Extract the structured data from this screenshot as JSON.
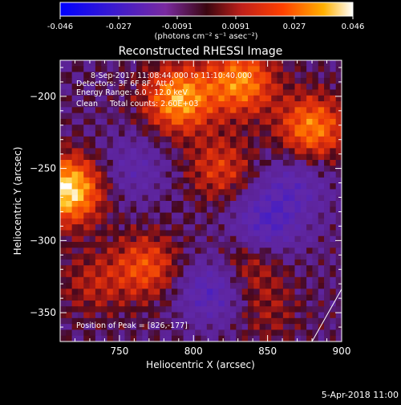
{
  "colorbar": {
    "ticks": [
      "-0.046",
      "-0.027",
      "-0.0091",
      "0.0091",
      "0.027",
      "0.046"
    ],
    "unit_label": "(photons cm⁻² s⁻¹ asec⁻²)"
  },
  "header": {
    "line1": "8-Sep-2017 11:08:44.000 to 11:10:40.000",
    "line2": "Detectors: 3F 6F 8F, Att 0",
    "line3": "Energy Range: 6.0 - 12.0 keV",
    "line4": "Clean     Total counts: 2.60E+03"
  },
  "peak_label": "Position of Peak = [826,-177]",
  "footer_date": "5-Apr-2018 11:00",
  "chart_data": {
    "type": "heatmap",
    "title": "Reconstructed RHESSI Image",
    "xlabel": "Heliocentric X (arcsec)",
    "ylabel": "Heliocentric Y (arcsec)",
    "xlim": [
      710,
      900
    ],
    "ylim": [
      -370,
      -175
    ],
    "x_ticks": [
      750,
      800,
      850,
      900
    ],
    "y_ticks": [
      -200,
      -250,
      -300,
      -350
    ],
    "value_range": [
      -0.046,
      0.046
    ],
    "colormap": [
      "#0000ff",
      "#5a1fb4",
      "#7a2aa0",
      "#c0201a",
      "#ff4000",
      "#ff9a00",
      "#ffff80",
      "#ffffff"
    ],
    "peak": [
      826,
      -177
    ],
    "sources": [
      {
        "x": 715,
        "y": -265,
        "value": 0.043
      },
      {
        "x": 790,
        "y": -202,
        "value": 0.035
      },
      {
        "x": 832,
        "y": -190,
        "value": 0.031
      },
      {
        "x": 880,
        "y": -222,
        "value": 0.03
      },
      {
        "x": 768,
        "y": -318,
        "value": 0.022
      },
      {
        "x": 818,
        "y": -250,
        "value": 0.018
      },
      {
        "x": 838,
        "y": -315,
        "value": 0.015
      },
      {
        "x": 732,
        "y": -330,
        "value": 0.012
      },
      {
        "x": 850,
        "y": -350,
        "value": 0.009
      },
      {
        "x": 760,
        "y": -250,
        "value": -0.012
      },
      {
        "x": 848,
        "y": -290,
        "value": -0.022
      },
      {
        "x": 812,
        "y": -335,
        "value": -0.02
      },
      {
        "x": 868,
        "y": -262,
        "value": -0.015
      }
    ],
    "limb_line": {
      "x": [
        880,
        902
      ],
      "y": [
        -370,
        -330
      ]
    }
  }
}
